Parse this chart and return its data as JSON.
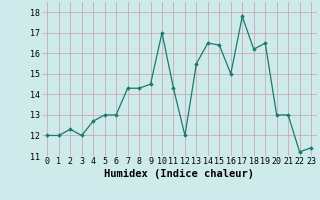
{
  "xlabel": "Humidex (Indice chaleur)",
  "x": [
    0,
    1,
    2,
    3,
    4,
    5,
    6,
    7,
    8,
    9,
    10,
    11,
    12,
    13,
    14,
    15,
    16,
    17,
    18,
    19,
    20,
    21,
    22,
    23
  ],
  "y": [
    12.0,
    12.0,
    12.3,
    12.0,
    12.7,
    13.0,
    13.0,
    14.3,
    14.3,
    14.5,
    17.0,
    14.3,
    12.0,
    15.5,
    16.5,
    16.4,
    15.0,
    17.8,
    16.2,
    16.5,
    13.0,
    13.0,
    11.2,
    11.4
  ],
  "line_color": "#1a7a6e",
  "marker": "D",
  "marker_size": 1.8,
  "line_width": 0.9,
  "bg_color": "#ceeaea",
  "grid_color_major": "#c8a0a8",
  "grid_color_minor": "#c8a0a8",
  "ylim": [
    11,
    18.5
  ],
  "yticks": [
    11,
    12,
    13,
    14,
    15,
    16,
    17,
    18
  ],
  "xlim": [
    -0.5,
    23.5
  ],
  "tick_fontsize": 6,
  "label_fontsize": 7.5
}
